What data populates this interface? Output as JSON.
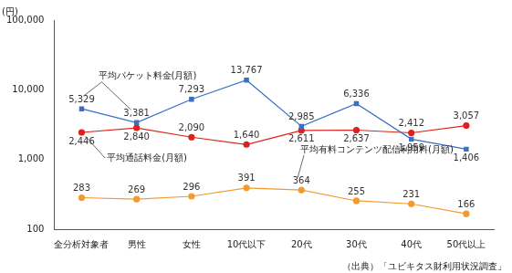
{
  "chart_data": {
    "type": "line",
    "y_label": "(円)",
    "source": "（出典）「ユビキタス財利用状況調査」",
    "categories": [
      "全分析対象者",
      "男性",
      "女性",
      "10代以下",
      "20代",
      "30代",
      "40代",
      "50代以上"
    ],
    "series": [
      {
        "name": "平均パケット料金(月額)",
        "color": "#3a6fc4",
        "marker": "square",
        "values": [
          5329,
          3381,
          7293,
          13767,
          2985,
          6336,
          1959,
          1406
        ],
        "value_labels": [
          "5,329",
          "3,381",
          "7,293",
          "13,767",
          "2,985",
          "6,336",
          "1,959",
          "1,406"
        ]
      },
      {
        "name": "平均通話料金(月額)",
        "color": "#e0201c",
        "marker": "circle",
        "values": [
          2446,
          2840,
          2090,
          1640,
          2611,
          2637,
          2412,
          3057
        ],
        "value_labels": [
          "2,446",
          "2,840",
          "2,090",
          "1,640",
          "2,611",
          "2,637",
          "2,412",
          "3,057"
        ]
      },
      {
        "name": "平均有料コンテンツ配信利用料(月額)",
        "color": "#f29a2e",
        "marker": "circle",
        "values": [
          283,
          269,
          296,
          391,
          364,
          255,
          231,
          166
        ],
        "value_labels": [
          "283",
          "269",
          "296",
          "391",
          "364",
          "255",
          "231",
          "166"
        ]
      }
    ],
    "ylim": [
      100,
      100000
    ],
    "yticks": [
      100,
      {
        "value": 1000,
        "label": "1,000"
      },
      {
        "value": 10000,
        "label": "10,000"
      },
      {
        "value": 100000,
        "label": "100,000"
      }
    ],
    "log": "y",
    "grid": false,
    "data_labels": true
  }
}
